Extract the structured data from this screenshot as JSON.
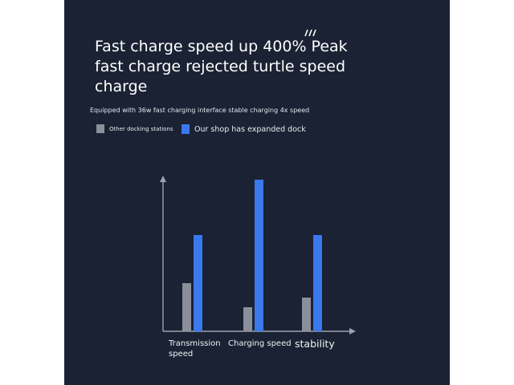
{
  "brand_mark": "///",
  "headline": "Fast charge speed up 400% Peak fast charge rejected turtle speed charge",
  "subtitle": "Equipped with 36w fast charging interface stable charging 4x speed",
  "colors": {
    "background": "#1a2233",
    "axis": "#9aa3b2",
    "other": "#8a8f99",
    "ours": "#3a78ee"
  },
  "chart_data": {
    "type": "bar",
    "title": "",
    "xlabel": "",
    "ylabel": "",
    "grid": false,
    "legend_position": "top-left",
    "ylim": [
      0,
      100
    ],
    "categories": [
      "Transmission speed",
      "Charging speed",
      "stability"
    ],
    "series": [
      {
        "name": "Other docking stations",
        "color": "#8a8f99",
        "values": [
          20,
          10,
          14
        ]
      },
      {
        "name": "Our shop has expanded dock",
        "color": "#3a78ee",
        "values": [
          40,
          63,
          40
        ]
      }
    ]
  }
}
